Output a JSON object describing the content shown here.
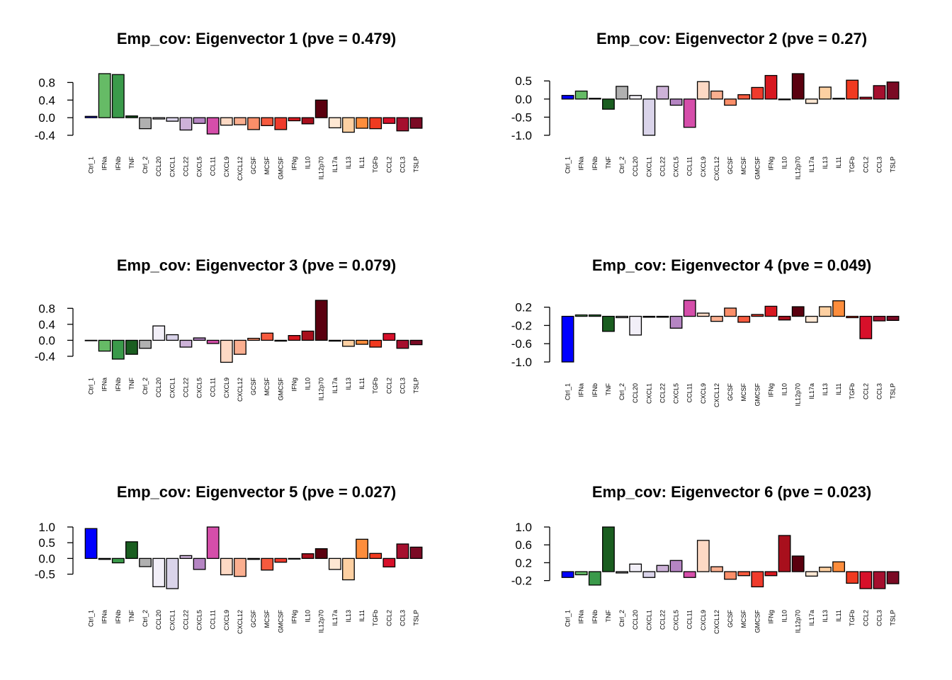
{
  "chart_data": [
    {
      "type": "bar",
      "title": "Emp_cov: Eigenvector 1 (pve = 0.479)",
      "categories": [
        "Ctrl_1",
        "IFNa",
        "IFNb",
        "TNF",
        "Ctrl_2",
        "CCL20",
        "CXCL1",
        "CCL22",
        "CXCL5",
        "CCL11",
        "CXCL9",
        "CXCL12",
        "GCSF",
        "MCSF",
        "GMCSF",
        "IFNg",
        "IL10",
        "IL12p70",
        "IL17a",
        "IL13",
        "IL11",
        "TGFb",
        "CCL2",
        "CCL3",
        "TSLP"
      ],
      "values": [
        0.03,
        1.0,
        0.98,
        0.04,
        -0.25,
        -0.03,
        -0.08,
        -0.28,
        -0.13,
        -0.37,
        -0.17,
        -0.16,
        -0.27,
        -0.18,
        -0.27,
        -0.07,
        -0.14,
        0.4,
        -0.23,
        -0.33,
        -0.24,
        -0.25,
        -0.13,
        -0.3,
        -0.24
      ],
      "ylim": [
        -0.4,
        1.0
      ],
      "yticks": [
        -0.4,
        0.0,
        0.4,
        0.8
      ],
      "ytick_labels": [
        "-0.4",
        "0.0",
        "0.4",
        "0.8"
      ],
      "xlabel": "",
      "ylabel": ""
    },
    {
      "type": "bar",
      "title": "Emp_cov: Eigenvector 2 (pve = 0.27)",
      "categories": [
        "Ctrl_1",
        "IFNa",
        "IFNb",
        "TNF",
        "Ctrl_2",
        "CCL20",
        "CXCL1",
        "CCL22",
        "CXCL5",
        "CCL11",
        "CXCL9",
        "CXCL12",
        "GCSF",
        "MCSF",
        "GMCSF",
        "IFNg",
        "IL10",
        "IL12p70",
        "IL17a",
        "IL13",
        "IL11",
        "TGFb",
        "CCL2",
        "CCL3",
        "TSLP"
      ],
      "values": [
        0.1,
        0.22,
        0.02,
        -0.28,
        0.35,
        0.1,
        -1.0,
        0.35,
        -0.17,
        -0.78,
        0.48,
        0.22,
        -0.17,
        0.12,
        0.32,
        0.65,
        -0.02,
        0.7,
        -0.12,
        0.33,
        0.02,
        0.52,
        0.05,
        0.37,
        0.47
      ],
      "ylim": [
        -1.0,
        0.7
      ],
      "yticks": [
        -1.0,
        -0.5,
        0.0,
        0.5
      ],
      "ytick_labels": [
        "-1.0",
        "-0.5",
        "0.0",
        "0.5"
      ],
      "xlabel": "",
      "ylabel": ""
    },
    {
      "type": "bar",
      "title": "Emp_cov: Eigenvector 3 (pve = 0.079)",
      "categories": [
        "Ctrl_1",
        "IFNa",
        "IFNb",
        "TNF",
        "Ctrl_2",
        "CCL20",
        "CXCL1",
        "CCL22",
        "CXCL5",
        "CCL11",
        "CXCL9",
        "CXCL12",
        "GCSF",
        "MCSF",
        "GMCSF",
        "IFNg",
        "IL10",
        "IL12p70",
        "IL17a",
        "IL13",
        "IL11",
        "TGFb",
        "CCL2",
        "CCL3",
        "TSLP"
      ],
      "values": [
        0.0,
        -0.27,
        -0.47,
        -0.35,
        -0.2,
        0.36,
        0.14,
        -0.17,
        0.06,
        -0.08,
        -0.55,
        -0.35,
        0.05,
        0.18,
        -0.02,
        0.12,
        0.23,
        1.0,
        -0.02,
        -0.15,
        -0.1,
        -0.17,
        0.17,
        -0.2,
        -0.11
      ],
      "ylim": [
        -0.4,
        1.0
      ],
      "yticks": [
        -0.4,
        0.0,
        0.4,
        0.8
      ],
      "ytick_labels": [
        "-0.4",
        "0.0",
        "0.4",
        "0.8"
      ],
      "xlabel": "",
      "ylabel": ""
    },
    {
      "type": "bar",
      "title": "Emp_cov: Eigenvector 4 (pve = 0.049)",
      "categories": [
        "Ctrl_1",
        "IFNa",
        "IFNb",
        "TNF",
        "Ctrl_2",
        "CCL20",
        "CXCL1",
        "CCL22",
        "CXCL5",
        "CCL11",
        "CXCL9",
        "CXCL12",
        "GCSF",
        "MCSF",
        "GMCSF",
        "IFNg",
        "IL10",
        "IL12p70",
        "IL17a",
        "IL13",
        "IL11",
        "TGFb",
        "CCL2",
        "CCL3",
        "TSLP"
      ],
      "values": [
        -1.0,
        0.03,
        0.03,
        -0.33,
        -0.03,
        -0.41,
        -0.02,
        -0.02,
        -0.26,
        0.35,
        0.07,
        -0.11,
        0.18,
        -0.13,
        0.04,
        0.22,
        -0.08,
        0.21,
        -0.13,
        0.21,
        0.34,
        -0.03,
        -0.49,
        -0.1,
        -0.09
      ],
      "ylim": [
        -1.0,
        0.35
      ],
      "yticks": [
        -1.0,
        -0.6,
        -0.2,
        0.2
      ],
      "ytick_labels": [
        "-1.0",
        "-0.6",
        "-0.2",
        "0.2"
      ],
      "xlabel": "",
      "ylabel": ""
    },
    {
      "type": "bar",
      "title": "Emp_cov: Eigenvector 5 (pve = 0.027)",
      "categories": [
        "Ctrl_1",
        "IFNa",
        "IFNb",
        "TNF",
        "Ctrl_2",
        "CCL20",
        "CXCL1",
        "CCL22",
        "CXCL5",
        "CCL11",
        "CXCL9",
        "CXCL12",
        "GCSF",
        "MCSF",
        "GMCSF",
        "IFNg",
        "IL10",
        "IL12p70",
        "IL17a",
        "IL13",
        "IL11",
        "TGFb",
        "CCL2",
        "CCL3",
        "TSLP"
      ],
      "values": [
        0.95,
        -0.03,
        -0.14,
        0.53,
        -0.26,
        -0.9,
        -0.96,
        0.09,
        -0.35,
        1.0,
        -0.52,
        -0.57,
        -0.03,
        -0.37,
        -0.12,
        -0.02,
        0.15,
        0.31,
        -0.35,
        -0.68,
        0.61,
        0.16,
        -0.27,
        0.46,
        0.36
      ],
      "ylim": [
        -0.96,
        1.0
      ],
      "yticks": [
        -0.5,
        0.0,
        0.5,
        1.0
      ],
      "ytick_labels": [
        "-0.5",
        "0.0",
        "0.5",
        "1.0"
      ],
      "xlabel": "",
      "ylabel": ""
    },
    {
      "type": "bar",
      "title": "Emp_cov: Eigenvector 6 (pve = 0.023)",
      "categories": [
        "Ctrl_1",
        "IFNa",
        "IFNb",
        "TNF",
        "Ctrl_2",
        "CCL20",
        "CXCL1",
        "CCL22",
        "CXCL5",
        "CCL11",
        "CXCL9",
        "CXCL12",
        "GCSF",
        "MCSF",
        "GMCSF",
        "IFNg",
        "IL10",
        "IL12p70",
        "IL17a",
        "IL13",
        "IL11",
        "TGFb",
        "CCL2",
        "CCL3",
        "TSLP"
      ],
      "values": [
        -0.13,
        -0.07,
        -0.3,
        1.0,
        -0.03,
        0.17,
        -0.13,
        0.14,
        0.25,
        -0.13,
        0.7,
        0.11,
        -0.17,
        -0.09,
        -0.34,
        -0.09,
        0.81,
        0.35,
        -0.1,
        0.1,
        0.22,
        -0.26,
        -0.38,
        -0.38,
        -0.27
      ],
      "ylim": [
        -0.38,
        1.0
      ],
      "yticks": [
        -0.2,
        0.2,
        0.6,
        1.0
      ],
      "ytick_labels": [
        "-0.2",
        "0.2",
        "0.6",
        "1.0"
      ],
      "xlabel": "",
      "ylabel": ""
    }
  ],
  "bar_colors": {
    "Ctrl_1": "#0000ff",
    "IFNa": "#66bb66",
    "IFNb": "#3a9a4a",
    "TNF": "#1a5e20",
    "Ctrl_2": "#b0b0b0",
    "CCL20": "#f2eff8",
    "CXCL1": "#dad4ea",
    "CCL22": "#cdb2d8",
    "CXCL5": "#b585c3",
    "CCL11": "#d54eaa",
    "CXCL9": "#fdd9c4",
    "CXCL12": "#fbaf90",
    "GCSF": "#fb8e69",
    "MCSF": "#f65a3e",
    "GMCSF": "#ef3b2c",
    "IFNg": "#d71820",
    "IL10": "#a80f1c",
    "IL12p70": "#5a000f",
    "IL17a": "#fee7d3",
    "IL13": "#fdd0a2",
    "IL11": "#fd8d3c",
    "TGFb": "#f03a20",
    "CCL2": "#d7102a",
    "CCL3": "#a50f2e",
    "TSLP": "#7a0a24"
  }
}
